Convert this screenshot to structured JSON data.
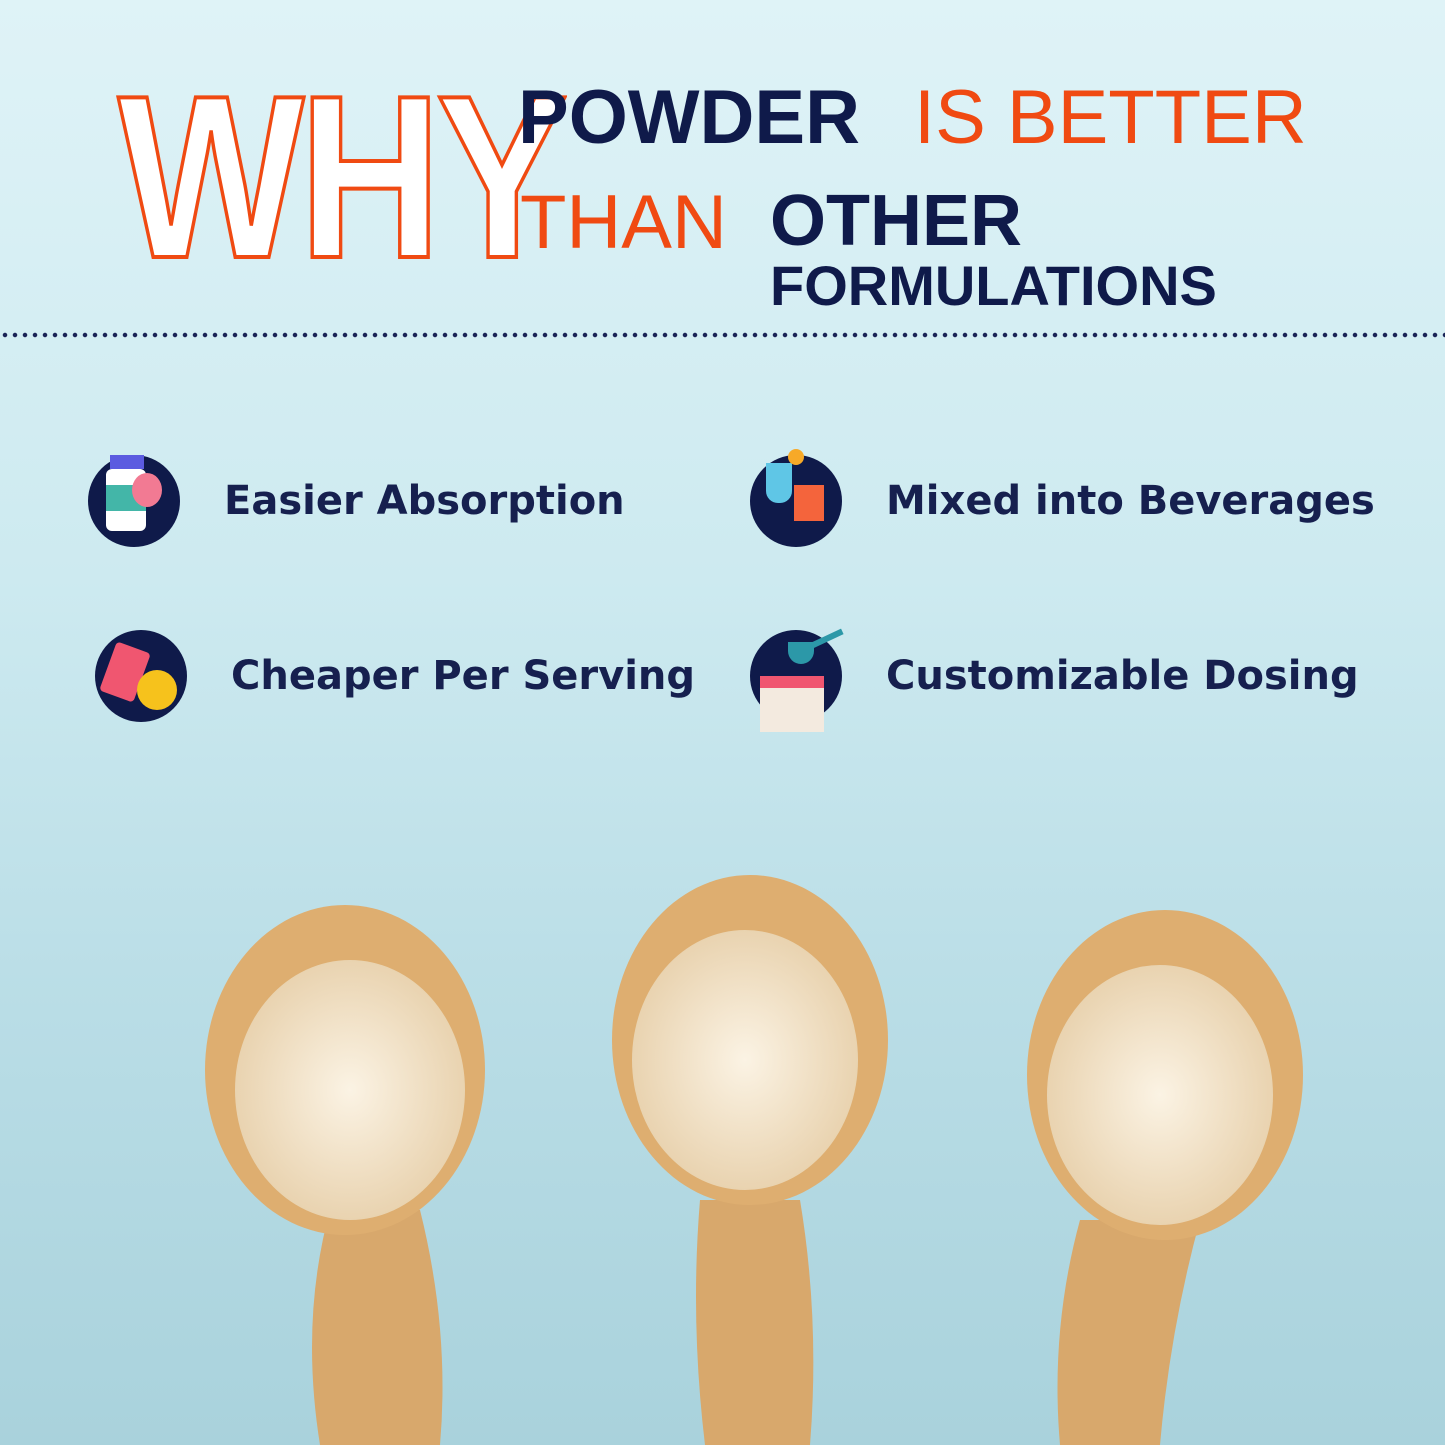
{
  "headline": {
    "why": "WHY",
    "powder": "POWDER",
    "is_better": "IS BETTER",
    "than": "THAN",
    "other": "OTHER",
    "formulations": "FORMULATIONS"
  },
  "features": [
    {
      "label": "Easier Absorption",
      "icon": "supplement-stomach-icon"
    },
    {
      "label": "Mixed into Beverages",
      "icon": "beverages-icon"
    },
    {
      "label": "Cheaper Per Serving",
      "icon": "price-tag-coin-icon"
    },
    {
      "label": "Customizable Dosing",
      "icon": "scoop-container-icon"
    }
  ],
  "colors": {
    "accent": "#f04a12",
    "navy": "#0f1a4a",
    "background": "#cdeaf0"
  }
}
